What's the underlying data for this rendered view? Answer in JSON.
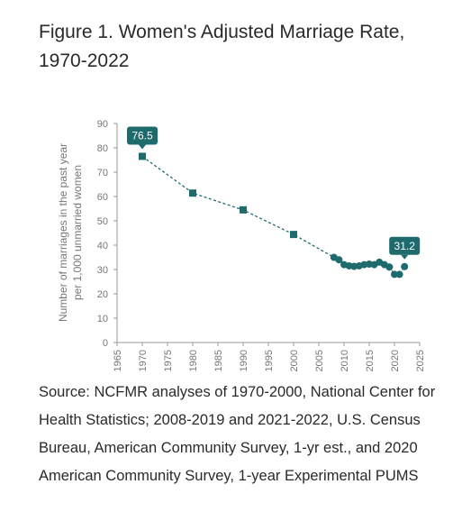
{
  "figure": {
    "title": "Figure 1.  Women's Adjusted Marriage Rate, 1970-2022",
    "source": "Source: NCFMR analyses of 1970-2000, National Center for Health Statistics; 2008-2019 and 2021-2022, U.S. Census Bureau, American Community Survey, 1-yr est., and 2020 American Community Survey, 1-year Experimental PUMS"
  },
  "colors": {
    "series": "#1e6b6e",
    "axis": "#999999",
    "text": "#777777"
  },
  "chart_data": {
    "type": "line",
    "ylabel_line1": "Number of marriages in the past year",
    "ylabel_line2": "per 1,000 unmarried women",
    "xlim": [
      1965,
      2025
    ],
    "ylim": [
      0,
      90
    ],
    "xticks": [
      1965,
      1970,
      1975,
      1980,
      1985,
      1990,
      1995,
      2000,
      2005,
      2010,
      2015,
      2020,
      2025
    ],
    "yticks": [
      0,
      10,
      20,
      30,
      40,
      50,
      60,
      70,
      80,
      90
    ],
    "grid": false,
    "series": [
      {
        "x": [
          1970,
          1980,
          1990,
          2000,
          2008,
          2009,
          2010,
          2011,
          2012,
          2013,
          2014,
          2015,
          2016,
          2017,
          2018,
          2019,
          2020,
          2021,
          2022
        ],
        "y": [
          76.5,
          61.4,
          54.5,
          44.4,
          35.0,
          34.0,
          32.0,
          31.5,
          31.3,
          31.5,
          32.0,
          32.2,
          32.0,
          33.0,
          32.0,
          31.0,
          28.0,
          28.0,
          31.2
        ],
        "markers": [
          "square",
          "square",
          "square",
          "square",
          "circle",
          "circle",
          "circle",
          "circle",
          "circle",
          "circle",
          "circle",
          "circle",
          "circle",
          "circle",
          "circle",
          "circle",
          "circle",
          "circle",
          "circle"
        ]
      }
    ],
    "annotations": [
      {
        "x": 1970,
        "y": 76.5,
        "text": "76.5"
      },
      {
        "x": 2022,
        "y": 31.2,
        "text": "31.2"
      }
    ]
  }
}
